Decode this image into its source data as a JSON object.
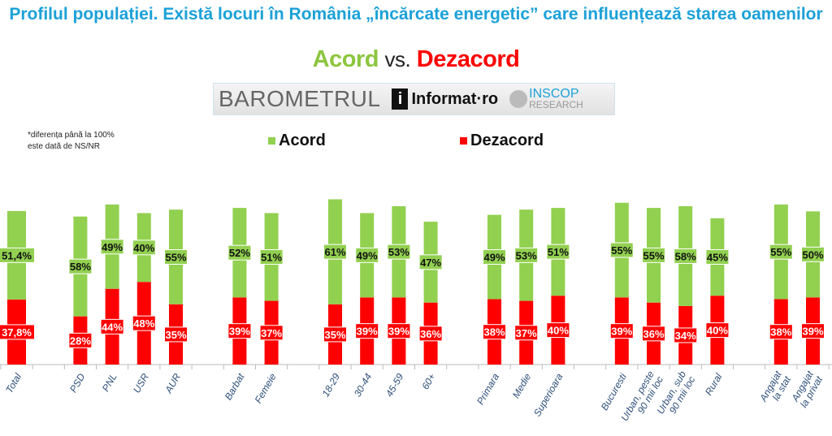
{
  "title": "Profilul populației. Există locuri în România „încărcate energetic” care influențează starea oamenilor",
  "subtitle": {
    "acord": "Acord",
    "vs": "vs.",
    "dezacord": "Dezacord"
  },
  "logo": {
    "barometrul": "BAROMETRUL",
    "informat": "Informat·ro",
    "informat_mark": "i",
    "inscop": "INSCOP",
    "research": "RESEARCH"
  },
  "note": [
    "*diferența până la 100%",
    "este dată de NS/NR"
  ],
  "chart_data": {
    "type": "bar",
    "stacked": true,
    "title": "Profilul populației. Există locuri în România „încărcate energetic” care influențează starea oamenilor",
    "legend": [
      "Acord",
      "Dezacord"
    ],
    "legend_position": "top",
    "colors": {
      "Acord": "#92d050",
      "Dezacord": "#ff0000"
    },
    "categories": [
      "Total",
      "",
      "PSD",
      "PNL",
      "USR",
      "AUR",
      "",
      "Barbat",
      "Femeie",
      "",
      "18-29",
      "30-44",
      "45-59",
      "60+",
      "",
      "Primara",
      "Medie",
      "Superioara",
      "",
      "Bucuresti",
      "Urban, peste 90 mii loc",
      "Urban, sub 90 mii loc",
      "Rural",
      "",
      "Angajat la stat",
      "Angajat la privat"
    ],
    "series": [
      {
        "name": "Dezacord",
        "values": [
          37.8,
          null,
          28,
          44,
          48,
          35,
          null,
          39,
          37,
          null,
          35,
          39,
          39,
          36,
          null,
          38,
          37,
          40,
          null,
          39,
          36,
          34,
          40,
          null,
          38,
          39
        ],
        "labels": [
          "37,8%",
          "",
          "28%",
          "44%",
          "48%",
          "35%",
          "",
          "39%",
          "37%",
          "",
          "35%",
          "39%",
          "39%",
          "36%",
          "",
          "38%",
          "37%",
          "40%",
          "",
          "39%",
          "36%",
          "34%",
          "40%",
          "",
          "38%",
          "39%"
        ]
      },
      {
        "name": "Acord",
        "values": [
          51.4,
          null,
          58,
          49,
          40,
          55,
          null,
          52,
          51,
          null,
          61,
          49,
          53,
          47,
          null,
          49,
          53,
          51,
          null,
          55,
          55,
          58,
          45,
          null,
          55,
          50
        ],
        "labels": [
          "51,4%",
          "",
          "58%",
          "49%",
          "40%",
          "55%",
          "",
          "52%",
          "51%",
          "",
          "61%",
          "49%",
          "53%",
          "47%",
          "",
          "49%",
          "53%",
          "51%",
          "",
          "55%",
          "55%",
          "58%",
          "45%",
          "",
          "55%",
          "50%"
        ]
      }
    ],
    "ylim": [
      0,
      100
    ],
    "grid": false
  }
}
